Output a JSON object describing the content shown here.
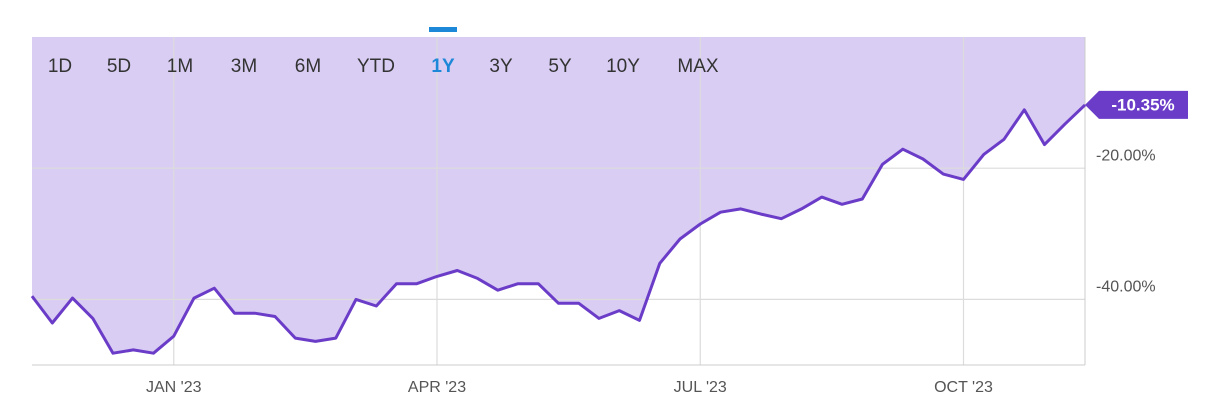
{
  "chart_data": {
    "type": "line",
    "ranges": [
      "1D",
      "5D",
      "1M",
      "3M",
      "6M",
      "YTD",
      "1Y",
      "3Y",
      "5Y",
      "10Y",
      "MAX"
    ],
    "selected_range": "1Y",
    "categories": [
      null,
      null,
      null,
      null,
      null,
      null,
      null,
      "JAN '23",
      null,
      null,
      null,
      null,
      null,
      null,
      null,
      null,
      null,
      null,
      null,
      null,
      "APR '23",
      null,
      null,
      null,
      null,
      null,
      null,
      null,
      null,
      null,
      null,
      null,
      null,
      "JUL '23",
      null,
      null,
      null,
      null,
      null,
      null,
      null,
      null,
      null,
      null,
      null,
      null,
      "OCT '23",
      null,
      null,
      null,
      null,
      null,
      null
    ],
    "values": [
      -39.5,
      -43.6,
      -39.8,
      -42.9,
      -48.2,
      -47.7,
      -48.2,
      -45.6,
      -39.8,
      -38.3,
      -42.1,
      -42.1,
      -42.6,
      -45.9,
      -46.4,
      -45.9,
      -40.0,
      -41.0,
      -37.6,
      -37.6,
      -36.5,
      -35.6,
      -36.8,
      -38.6,
      -37.6,
      -37.6,
      -40.6,
      -40.6,
      -42.9,
      -41.7,
      -43.2,
      -34.5,
      -30.8,
      -28.5,
      -26.7,
      -26.2,
      -27.0,
      -27.7,
      -26.2,
      -24.4,
      -25.5,
      -24.7,
      -19.4,
      -17.1,
      -18.6,
      -20.9,
      -21.7,
      -17.9,
      -15.6,
      -11.1,
      -16.4,
      -13.3,
      -10.35
    ],
    "value_labels": [
      null,
      null,
      null,
      null,
      null,
      null,
      null,
      null,
      null,
      null,
      null,
      null,
      null,
      null,
      null,
      null,
      null,
      null,
      null,
      null,
      null,
      null,
      null,
      null,
      null,
      null,
      null,
      null,
      null,
      null,
      null,
      null,
      null,
      null,
      null,
      null,
      null,
      null,
      null,
      null,
      null,
      null,
      null,
      null,
      null,
      null,
      null,
      null,
      null,
      null,
      null,
      null,
      "-10.35%"
    ],
    "color": "#6a3cc8",
    "fill_color": "#d9cdf3",
    "ylim": [
      -50,
      0
    ],
    "yticks": [
      {
        "value": -20,
        "label": "-20.00%"
      },
      {
        "value": -40,
        "label": "-40.00%"
      }
    ],
    "grid": true
  }
}
